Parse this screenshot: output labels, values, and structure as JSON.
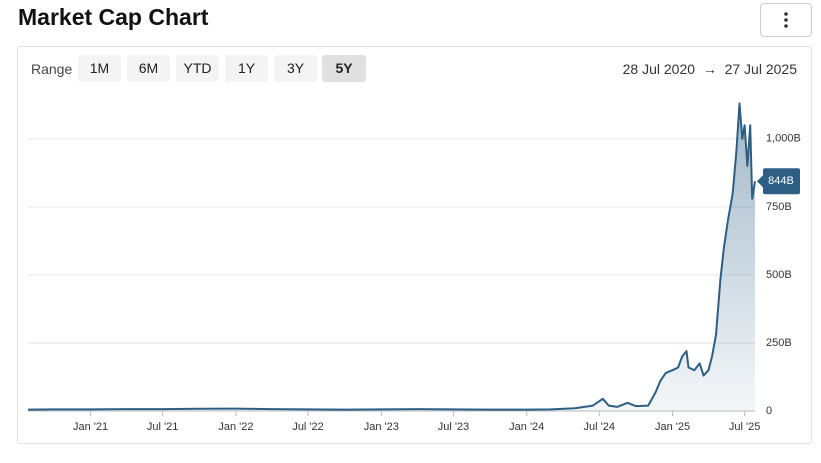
{
  "header": {
    "title": "Market Cap Chart"
  },
  "controls": {
    "range_label": "Range",
    "ranges": [
      "1M",
      "6M",
      "YTD",
      "1Y",
      "3Y",
      "5Y"
    ],
    "active_range": "5Y",
    "date_from": "28 Jul 2020",
    "date_separator": "→",
    "date_to": "27 Jul 2025"
  },
  "chart_data": {
    "type": "area",
    "color": "#2d5f85",
    "grid": true,
    "xlim": [
      "2020-07-28",
      "2025-07-27"
    ],
    "xticks": [
      {
        "value": "2021-01-01",
        "label": "Jan '21"
      },
      {
        "value": "2021-07-01",
        "label": "Jul '21"
      },
      {
        "value": "2022-01-01",
        "label": "Jan '22"
      },
      {
        "value": "2022-07-01",
        "label": "Jul '22"
      },
      {
        "value": "2023-01-01",
        "label": "Jan '23"
      },
      {
        "value": "2023-07-01",
        "label": "Jul '23"
      },
      {
        "value": "2024-01-01",
        "label": "Jan '24"
      },
      {
        "value": "2024-07-01",
        "label": "Jul '24"
      },
      {
        "value": "2025-01-01",
        "label": "Jan '25"
      },
      {
        "value": "2025-07-01",
        "label": "Jul '25"
      }
    ],
    "ylim": [
      0,
      1150
    ],
    "yticks": [
      0,
      {
        "value": 250,
        "label": "250B"
      },
      {
        "value": 500,
        "label": "500B"
      },
      {
        "value": 750,
        "label": "750B"
      },
      {
        "value": 1000,
        "label": "1,000B"
      }
    ],
    "x": [
      "2020-07-28",
      "2020-10-01",
      "2021-01-01",
      "2021-04-01",
      "2021-07-01",
      "2021-10-01",
      "2022-01-01",
      "2022-04-01",
      "2022-07-01",
      "2022-10-01",
      "2023-01-01",
      "2023-04-01",
      "2023-07-01",
      "2023-10-01",
      "2024-01-01",
      "2024-03-01",
      "2024-05-01",
      "2024-06-15",
      "2024-07-10",
      "2024-07-25",
      "2024-08-15",
      "2024-09-10",
      "2024-10-01",
      "2024-11-01",
      "2024-11-20",
      "2024-12-01",
      "2024-12-15",
      "2025-01-01",
      "2025-01-15",
      "2025-01-25",
      "2025-02-05",
      "2025-02-10",
      "2025-02-25",
      "2025-03-10",
      "2025-03-20",
      "2025-04-01",
      "2025-04-10",
      "2025-04-20",
      "2025-05-01",
      "2025-05-10",
      "2025-05-20",
      "2025-06-01",
      "2025-06-10",
      "2025-06-18",
      "2025-06-25",
      "2025-07-01",
      "2025-07-08",
      "2025-07-15",
      "2025-07-20",
      "2025-07-27"
    ],
    "values": [
      5,
      6,
      6,
      7,
      7,
      8,
      9,
      7,
      6,
      5,
      6,
      7,
      6,
      5,
      5,
      6,
      10,
      20,
      45,
      20,
      15,
      30,
      18,
      20,
      70,
      110,
      140,
      150,
      160,
      200,
      220,
      160,
      150,
      175,
      130,
      150,
      200,
      280,
      480,
      600,
      700,
      800,
      950,
      1130,
      1000,
      1050,
      900,
      1050,
      780,
      844
    ],
    "last_value_label": "844B"
  }
}
